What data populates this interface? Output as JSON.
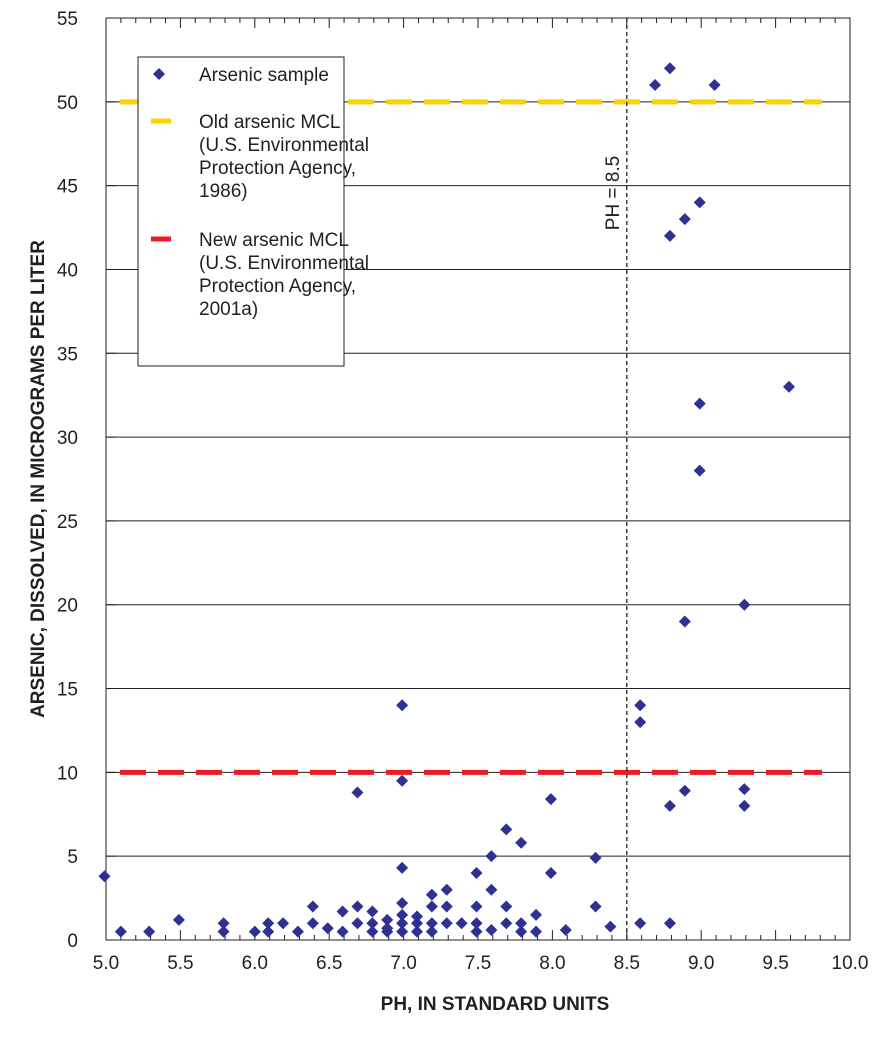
{
  "chart_data": {
    "type": "scatter",
    "title": "",
    "xlabel": "PH, IN STANDARD UNITS",
    "ylabel": "ARSENIC, DISSOLVED, IN MICROGRAMS PER LITER",
    "xlim": [
      5.0,
      10.0
    ],
    "ylim": [
      0,
      55
    ],
    "x_ticks": [
      5.0,
      5.5,
      6.0,
      6.5,
      7.0,
      7.5,
      8.0,
      8.5,
      9.0,
      9.5,
      10.0
    ],
    "x_tick_labels": [
      "5.0",
      "5.5",
      "6.0",
      "6.5",
      "7.0",
      "7.5",
      "8.0",
      "8.5",
      "9.0",
      "9.5",
      "10.0"
    ],
    "y_ticks": [
      0,
      5,
      10,
      15,
      20,
      25,
      30,
      35,
      40,
      45,
      50,
      55
    ],
    "y_tick_labels": [
      "0",
      "5",
      "10",
      "15",
      "20",
      "25",
      "30",
      "35",
      "40",
      "45",
      "50",
      "55"
    ],
    "grid": "horizontal",
    "legend_position": "top-left",
    "series": [
      {
        "name": "Arsenic sample",
        "color": "#2e3192",
        "marker": "diamond",
        "points": [
          [
            4.99,
            3.8
          ],
          [
            5.1,
            0.5
          ],
          [
            5.29,
            0.5
          ],
          [
            5.49,
            1.2
          ],
          [
            5.79,
            1.0
          ],
          [
            5.79,
            0.5
          ],
          [
            6.0,
            0.5
          ],
          [
            6.09,
            1.0
          ],
          [
            6.09,
            0.5
          ],
          [
            6.19,
            1.0
          ],
          [
            6.29,
            0.5
          ],
          [
            6.39,
            2.0
          ],
          [
            6.39,
            1.0
          ],
          [
            6.49,
            0.7
          ],
          [
            6.59,
            1.7
          ],
          [
            6.59,
            0.5
          ],
          [
            6.69,
            8.8
          ],
          [
            6.69,
            2.0
          ],
          [
            6.69,
            1.0
          ],
          [
            6.79,
            1.7
          ],
          [
            6.79,
            1.0
          ],
          [
            6.79,
            0.5
          ],
          [
            6.89,
            1.2
          ],
          [
            6.89,
            0.7
          ],
          [
            6.89,
            0.5
          ],
          [
            6.99,
            14.0
          ],
          [
            6.99,
            9.5
          ],
          [
            6.99,
            4.3
          ],
          [
            6.99,
            2.2
          ],
          [
            6.99,
            1.5
          ],
          [
            6.99,
            1.0
          ],
          [
            6.99,
            0.5
          ],
          [
            7.09,
            1.4
          ],
          [
            7.09,
            1.0
          ],
          [
            7.09,
            0.5
          ],
          [
            7.19,
            2.7
          ],
          [
            7.19,
            2.0
          ],
          [
            7.19,
            1.0
          ],
          [
            7.19,
            0.5
          ],
          [
            7.29,
            3.0
          ],
          [
            7.29,
            2.0
          ],
          [
            7.29,
            1.0
          ],
          [
            7.39,
            1.0
          ],
          [
            7.49,
            4.0
          ],
          [
            7.49,
            2.0
          ],
          [
            7.49,
            1.0
          ],
          [
            7.49,
            0.5
          ],
          [
            7.59,
            5.0
          ],
          [
            7.59,
            3.0
          ],
          [
            7.59,
            0.6
          ],
          [
            7.69,
            6.6
          ],
          [
            7.69,
            2.0
          ],
          [
            7.69,
            1.0
          ],
          [
            7.79,
            5.8
          ],
          [
            7.79,
            1.0
          ],
          [
            7.79,
            0.5
          ],
          [
            7.89,
            1.5
          ],
          [
            7.89,
            0.5
          ],
          [
            7.99,
            8.4
          ],
          [
            7.99,
            4.0
          ],
          [
            8.09,
            0.6
          ],
          [
            8.29,
            4.9
          ],
          [
            8.29,
            2.0
          ],
          [
            8.39,
            0.8
          ],
          [
            8.59,
            14.0
          ],
          [
            8.59,
            13.0
          ],
          [
            8.59,
            1.0
          ],
          [
            8.69,
            51.0
          ],
          [
            8.79,
            52.0
          ],
          [
            8.79,
            42.0
          ],
          [
            8.79,
            8.0
          ],
          [
            8.79,
            1.0
          ],
          [
            8.89,
            43.0
          ],
          [
            8.89,
            19.0
          ],
          [
            8.89,
            8.9
          ],
          [
            8.99,
            44.0
          ],
          [
            8.99,
            32.0
          ],
          [
            8.99,
            28.0
          ],
          [
            9.09,
            51.0
          ],
          [
            9.29,
            20.0
          ],
          [
            9.29,
            9.0
          ],
          [
            9.29,
            8.0
          ],
          [
            9.59,
            33.0
          ]
        ]
      }
    ],
    "reference_lines": [
      {
        "name": "Old arsenic MCL (U.S. Environmental Protection Agency, 1986)",
        "axis": "y",
        "value": 50,
        "color": "#fdd000",
        "style": "dashed"
      },
      {
        "name": "New arsenic MCL (U.S. Environmental Protection Agency, 2001a)",
        "axis": "y",
        "value": 10,
        "color": "#ed1c24",
        "style": "dashed"
      },
      {
        "label": "PH = 8.5",
        "axis": "x",
        "value": 8.5,
        "color": "#231f20",
        "style": "dotted"
      }
    ],
    "legend": [
      {
        "marker": "diamond",
        "color": "#2e3192",
        "lines": [
          "Arsenic sample"
        ]
      },
      {
        "marker": "dash",
        "color": "#fdd000",
        "lines": [
          "Old arsenic MCL",
          "(U.S. Environmental",
          "Protection Agency,",
          "1986)"
        ]
      },
      {
        "marker": "dash",
        "color": "#ed1c24",
        "lines": [
          "New arsenic MCL",
          "(U.S. Environmental",
          "Protection Agency,",
          "2001a)"
        ]
      }
    ]
  }
}
